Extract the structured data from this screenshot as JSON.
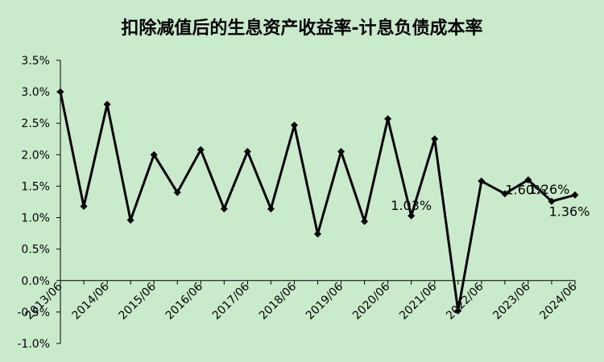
{
  "chart_data": {
    "type": "line",
    "title": "扣除减值后的生息资产收益率-计息负债成本率",
    "xlabel": "",
    "ylabel": "",
    "ylim": [
      -1.0,
      3.5
    ],
    "yticks": [
      "-1.0%",
      "-0.5%",
      "0.0%",
      "0.5%",
      "1.0%",
      "1.5%",
      "2.0%",
      "2.5%",
      "3.0%",
      "3.5%"
    ],
    "xtick_labels": [
      "2013/06",
      "2014/06",
      "2015/06",
      "2016/06",
      "2017/06",
      "2018/06",
      "2019/06",
      "2020/06",
      "2021/06",
      "2022/06",
      "2023/06",
      "2024/06"
    ],
    "grid": false,
    "legend": "none",
    "colors": {
      "background": "#c9ebcb",
      "line": "#000000"
    },
    "series": [
      {
        "values": [
          3.0,
          1.18,
          2.8,
          0.96,
          2.0,
          1.4,
          2.08,
          1.14,
          2.05,
          1.14,
          2.47,
          0.74,
          2.05,
          0.94,
          2.57,
          1.03,
          2.25,
          -0.48,
          1.58,
          1.38,
          1.6,
          1.26,
          1.36
        ]
      }
    ],
    "annotations": [
      {
        "text": "1.03%",
        "index": 15
      },
      {
        "text": "1.60%",
        "index": 20
      },
      {
        "text": "1.26%",
        "index": 21
      },
      {
        "text": "1.36%",
        "index": 22
      }
    ]
  }
}
